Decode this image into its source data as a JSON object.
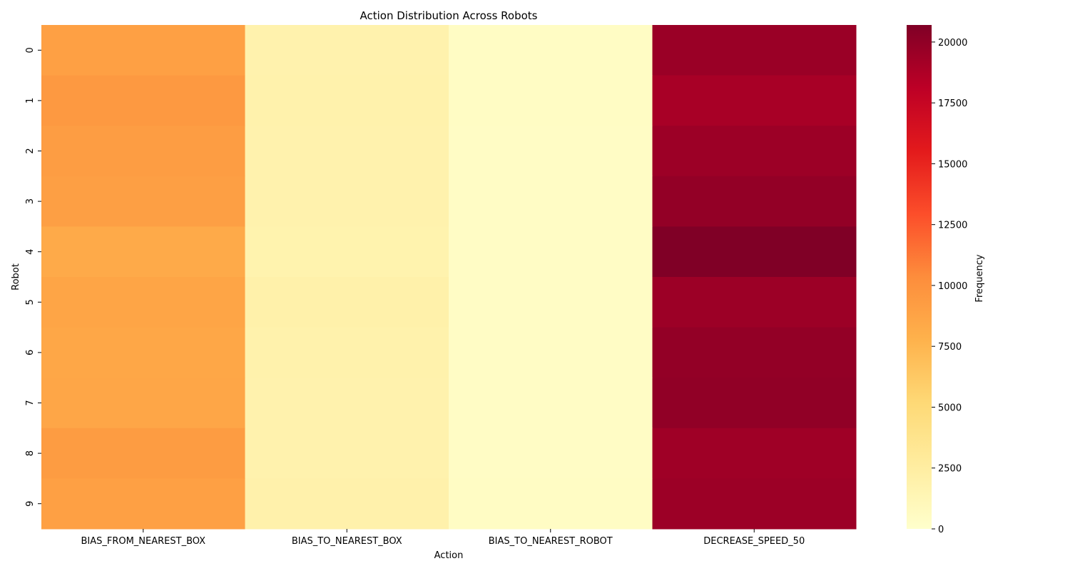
{
  "chart_data": {
    "type": "heatmap",
    "title": "Action Distribution Across Robots",
    "xlabel": "Action",
    "ylabel": "Robot",
    "colorbar_label": "Frequency",
    "x_categories": [
      "BIAS_FROM_NEAREST_BOX",
      "BIAS_TO_NEAREST_BOX",
      "BIAS_TO_NEAREST_ROBOT",
      "DECREASE_SPEED_50"
    ],
    "y_categories": [
      "0",
      "1",
      "2",
      "3",
      "4",
      "5",
      "6",
      "7",
      "8",
      "9"
    ],
    "values": [
      [
        9000,
        1800,
        450,
        19600
      ],
      [
        9500,
        1900,
        460,
        19000
      ],
      [
        9200,
        1850,
        440,
        19500
      ],
      [
        9100,
        1800,
        430,
        19900
      ],
      [
        8300,
        1750,
        420,
        20700
      ],
      [
        8700,
        2000,
        440,
        19500
      ],
      [
        8500,
        1900,
        430,
        19900
      ],
      [
        8600,
        1850,
        440,
        20000
      ],
      [
        9300,
        1800,
        430,
        19400
      ],
      [
        9000,
        1950,
        450,
        19500
      ]
    ],
    "colormap": "YlOrRd",
    "color_range": [
      0,
      20700
    ],
    "colorbar_ticks": [
      0,
      2500,
      5000,
      7500,
      10000,
      12500,
      15000,
      17500,
      20000
    ],
    "grid": false
  }
}
